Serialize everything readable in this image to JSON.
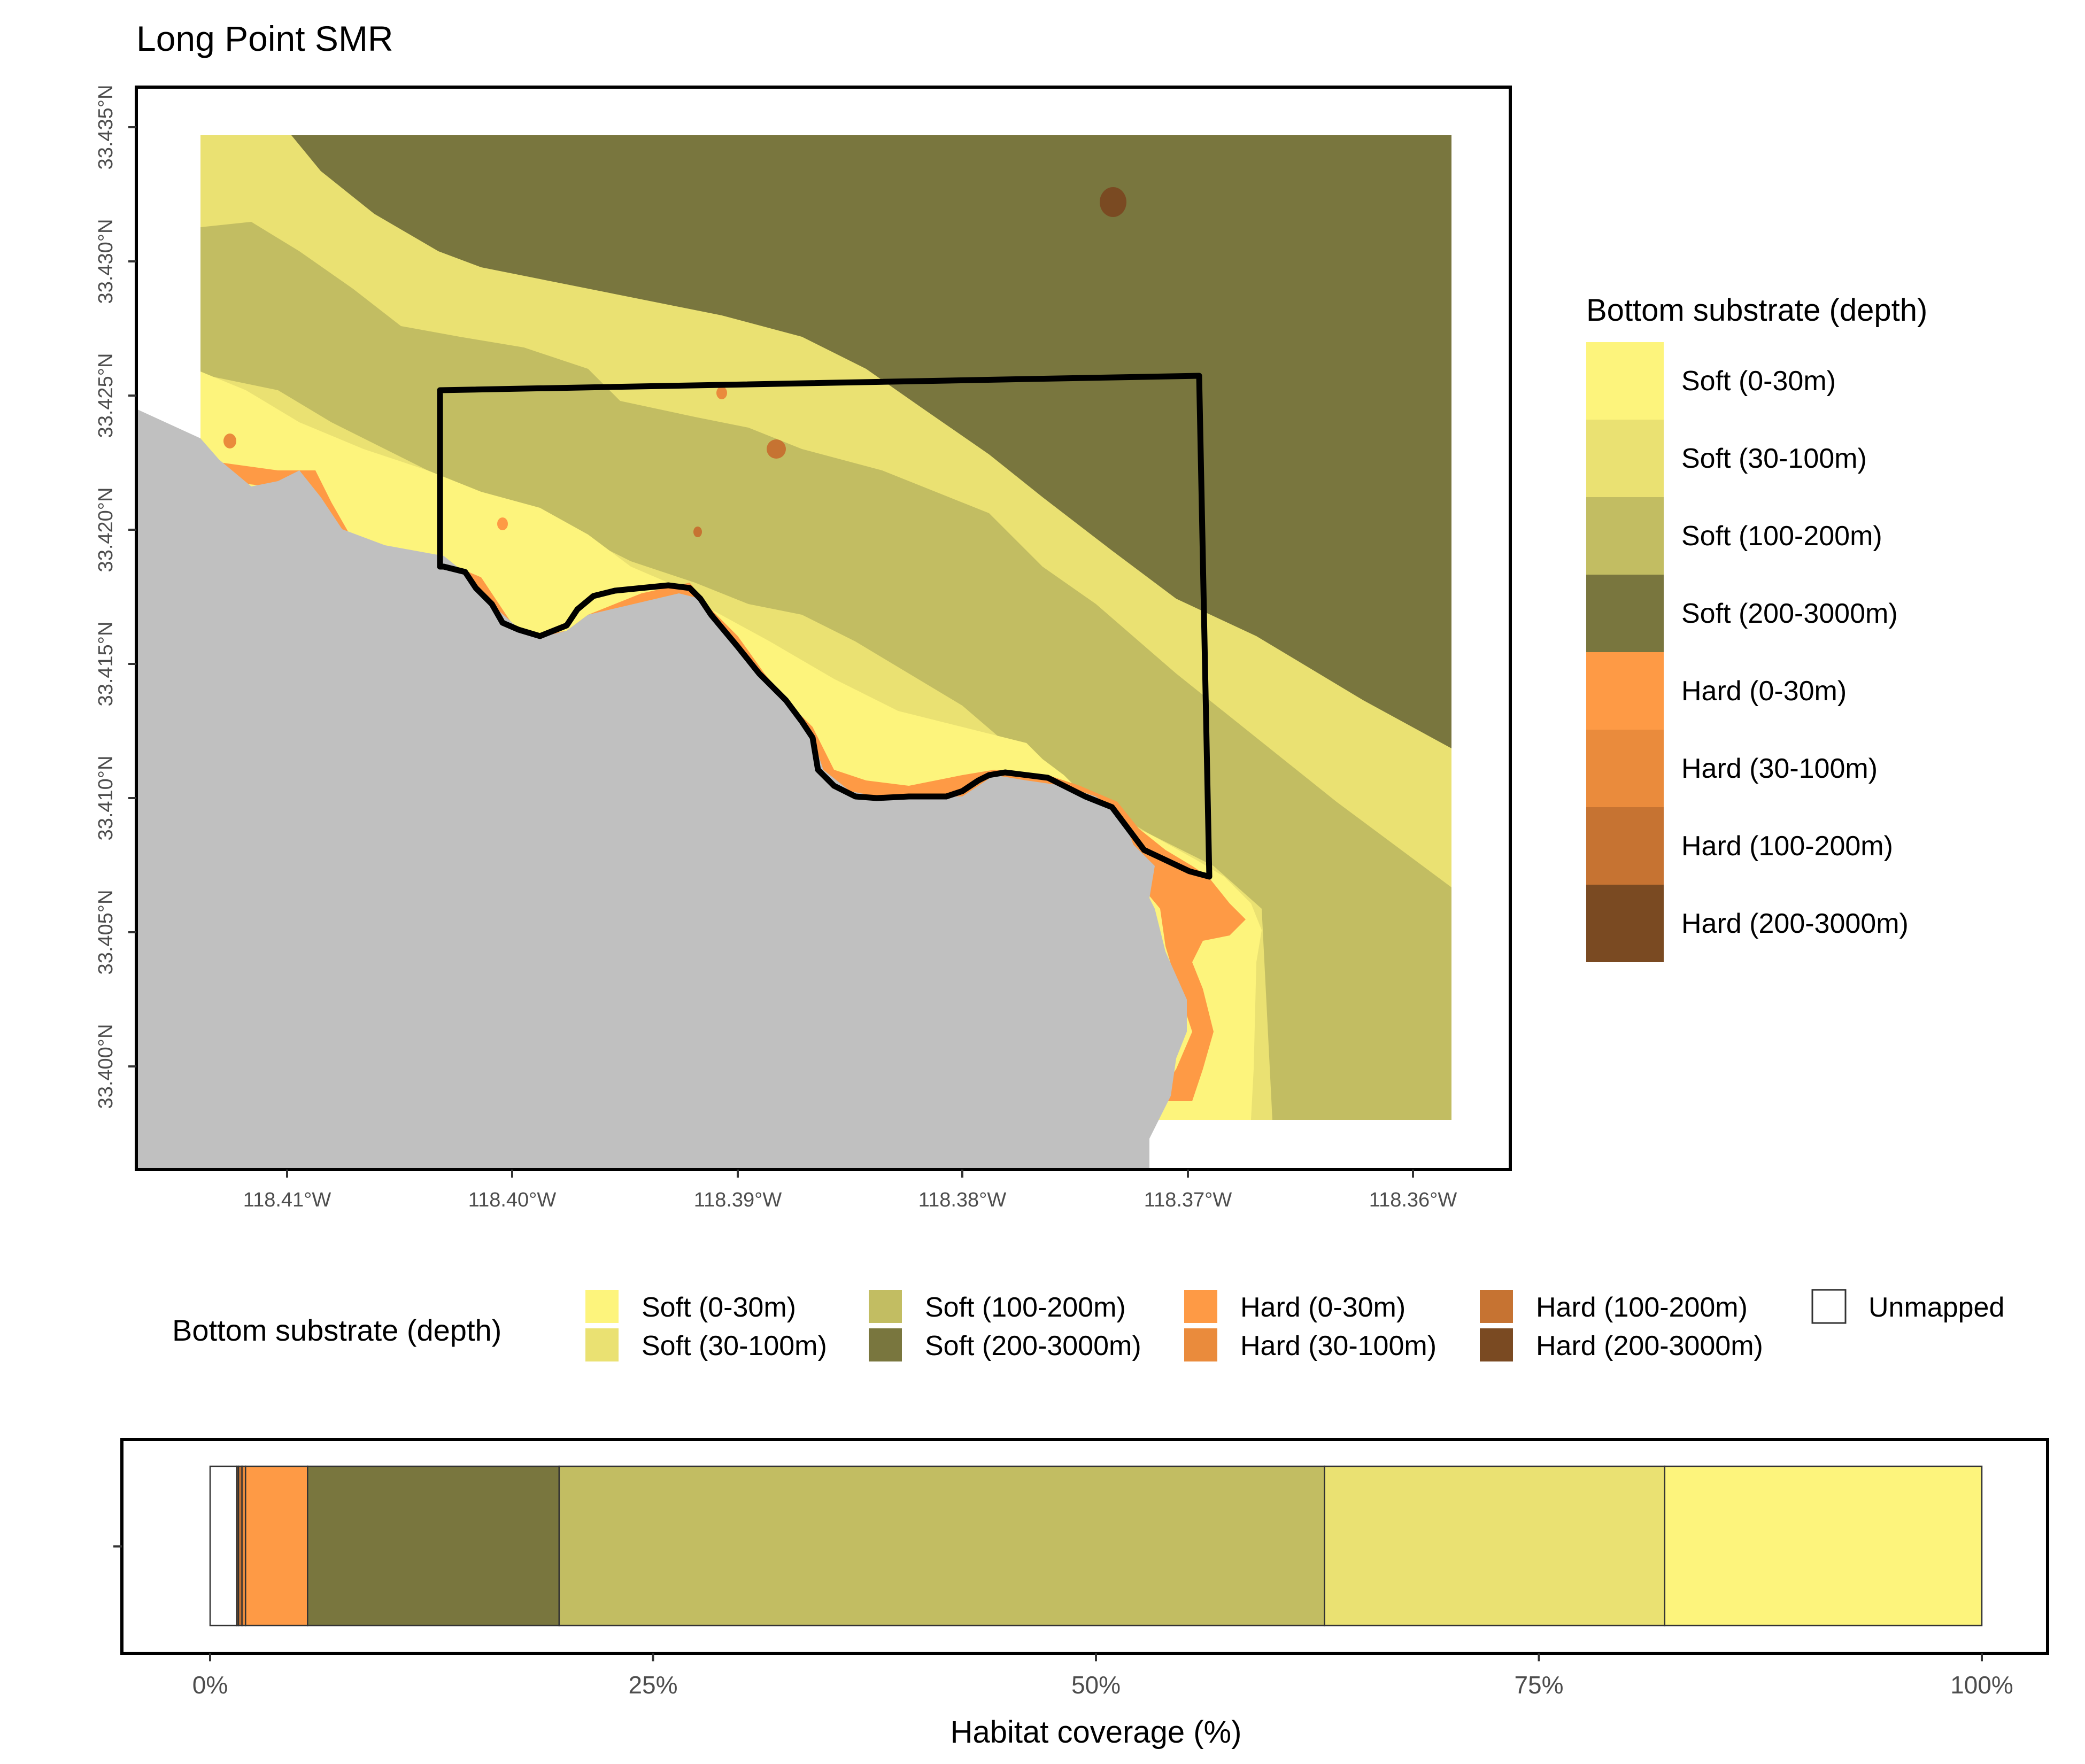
{
  "title": "Long Point SMR",
  "map": {
    "lat_ticks": [
      "33.435°N",
      "33.430°N",
      "33.425°N",
      "33.420°N",
      "33.415°N",
      "33.410°N",
      "33.405°N",
      "33.400°N"
    ],
    "lon_ticks": [
      "118.41°W",
      "118.40°W",
      "118.39°W",
      "118.38°W",
      "118.37°W",
      "118.36°W"
    ]
  },
  "legend_right": {
    "title": "Bottom substrate (depth)",
    "items": [
      {
        "label": "Soft (0-30m)",
        "color": "#FDF47C"
      },
      {
        "label": "Soft (30-100m)",
        "color": "#EAE172"
      },
      {
        "label": "Soft (100-200m)",
        "color": "#C2BD62"
      },
      {
        "label": "Soft (200-3000m)",
        "color": "#79763E"
      },
      {
        "label": "Hard (0-30m)",
        "color": "#FE9A45"
      },
      {
        "label": "Hard (30-100m)",
        "color": "#EA8B3C"
      },
      {
        "label": "Hard (100-200m)",
        "color": "#C67332"
      },
      {
        "label": "Hard (200-3000m)",
        "color": "#7A4A22"
      }
    ]
  },
  "legend_bottom": {
    "title": "Bottom substrate (depth)",
    "items": [
      {
        "label": "Soft (0-30m)",
        "color": "#FDF47C"
      },
      {
        "label": "Soft (30-100m)",
        "color": "#EAE172"
      },
      {
        "label": "Soft (100-200m)",
        "color": "#C2BD62"
      },
      {
        "label": "Soft (200-3000m)",
        "color": "#79763E"
      },
      {
        "label": "Hard (0-30m)",
        "color": "#FE9A45"
      },
      {
        "label": "Hard (30-100m)",
        "color": "#EA8B3C"
      },
      {
        "label": "Hard (100-200m)",
        "color": "#C67332"
      },
      {
        "label": "Hard (200-3000m)",
        "color": "#7A4A22"
      },
      {
        "label": "Unmapped",
        "color": "#FFFFFF"
      }
    ]
  },
  "chart_data": {
    "type": "bar",
    "orientation": "horizontal-stacked",
    "xlabel": "Habitat coverage (%)",
    "x_ticks": [
      "0%",
      "25%",
      "50%",
      "75%",
      "100%"
    ],
    "xlim": [
      0,
      100
    ],
    "series": [
      {
        "name": "Unmapped",
        "value": 1.5,
        "color": "#FFFFFF"
      },
      {
        "name": "Hard (200-3000m)",
        "value": 0.1,
        "color": "#7A4A22"
      },
      {
        "name": "Hard (100-200m)",
        "value": 0.2,
        "color": "#C67332"
      },
      {
        "name": "Hard (30-100m)",
        "value": 0.2,
        "color": "#EA8B3C"
      },
      {
        "name": "Hard (0-30m)",
        "value": 3.5,
        "color": "#FE9A45"
      },
      {
        "name": "Soft (200-3000m)",
        "value": 14.2,
        "color": "#79763E"
      },
      {
        "name": "Soft (100-200m)",
        "value": 43.2,
        "color": "#C2BD62"
      },
      {
        "name": "Soft (30-100m)",
        "value": 19.2,
        "color": "#EAE172"
      },
      {
        "name": "Soft (0-30m)",
        "value": 17.9,
        "color": "#FDF47C"
      }
    ]
  }
}
